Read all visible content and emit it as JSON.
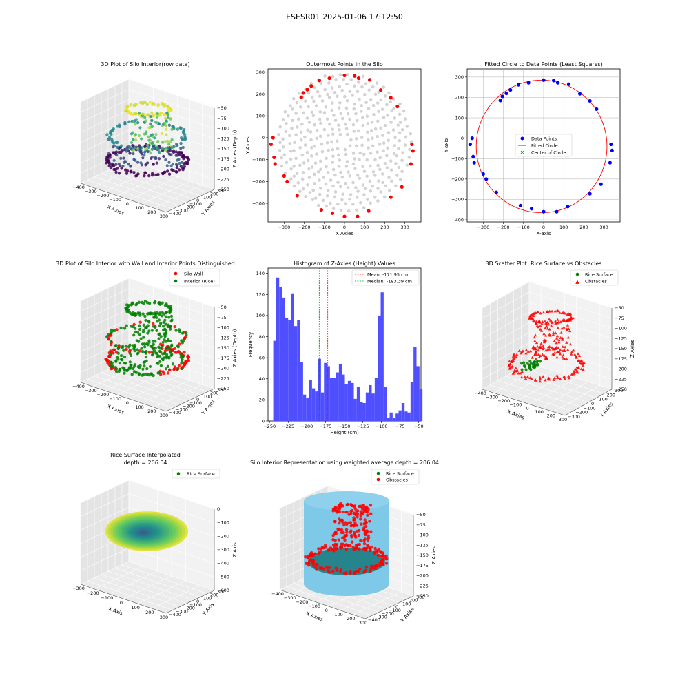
{
  "figure": {
    "suptitle": "ESESR01 2025-01-06 17:12:50"
  },
  "chart_data": [
    {
      "id": "p1",
      "type": "scatter",
      "title": "3D Plot of Silo Interior(row data)",
      "xlabel": "X Axies",
      "ylabel": "Y Axies",
      "zlabel": "Z Axies (Depth)",
      "xticks": [
        "−400",
        "−300",
        "−200",
        "−100",
        "0",
        "100",
        "200",
        "300"
      ],
      "yticks": [
        "−400",
        "−300",
        "−200",
        "−100",
        "0",
        "100",
        "200",
        "300"
      ],
      "zticks": [
        "−50",
        "−75",
        "−100",
        "−125",
        "−150",
        "−175",
        "−200",
        "−225",
        "−250"
      ],
      "colormap": "viridis"
    },
    {
      "id": "p2",
      "type": "scatter",
      "title": "Outermost Points in the Silo",
      "xlabel": "X Axies",
      "ylabel": "Y Axies",
      "xlim": [
        -380,
        380
      ],
      "ylim": [
        -385,
        315
      ],
      "xticks": [
        -300,
        -200,
        -100,
        0,
        100,
        200,
        300
      ],
      "yticks": [
        -300,
        -200,
        -100,
        0,
        100,
        200,
        300
      ],
      "series": [
        {
          "color": "#d3d3d3"
        },
        {
          "color": "#ff0000",
          "points": [
            [
              -355,
              0
            ],
            [
              -365,
              -30
            ],
            [
              -350,
              -90
            ],
            [
              -345,
              -120
            ],
            [
              -300,
              -175
            ],
            [
              -285,
              -200
            ],
            [
              -235,
              -265
            ],
            [
              -215,
              185
            ],
            [
              -205,
              205
            ],
            [
              -185,
              220
            ],
            [
              -165,
              237
            ],
            [
              -125,
              262
            ],
            [
              -75,
              272
            ],
            [
              -115,
              -330
            ],
            [
              -60,
              -345
            ],
            [
              0,
              -360
            ],
            [
              65,
              -360
            ],
            [
              120,
              -335
            ],
            [
              0,
              285
            ],
            [
              50,
              283
            ],
            [
              70,
              272
            ],
            [
              125,
              265
            ],
            [
              180,
              218
            ],
            [
              230,
              183
            ],
            [
              263,
              143
            ],
            [
              335,
              -30
            ],
            [
              340,
              -60
            ],
            [
              330,
              -120
            ],
            [
              285,
              -225
            ],
            [
              230,
              -272
            ]
          ]
        }
      ]
    },
    {
      "id": "p3",
      "type": "scatter",
      "title": "Fitted Circle to Data Points (Least Squares)",
      "xlabel": "X-axis",
      "ylabel": "Y-axis",
      "xlim": [
        -380,
        380
      ],
      "ylim": [
        -410,
        340
      ],
      "xticks": [
        -300,
        -200,
        -100,
        0,
        100,
        200,
        300
      ],
      "yticks": [
        -400,
        -300,
        -200,
        -100,
        0,
        100,
        200,
        300
      ],
      "legend": [
        "Data Points",
        "Fitted Circle",
        "Center of Circle"
      ],
      "circle": {
        "cx": -10,
        "cy": -40,
        "r": 325
      },
      "points": [
        [
          -355,
          0
        ],
        [
          -365,
          -30
        ],
        [
          -350,
          -90
        ],
        [
          -345,
          -120
        ],
        [
          -300,
          -175
        ],
        [
          -285,
          -200
        ],
        [
          -235,
          -265
        ],
        [
          -215,
          185
        ],
        [
          -205,
          205
        ],
        [
          -185,
          220
        ],
        [
          -165,
          237
        ],
        [
          -125,
          262
        ],
        [
          -75,
          272
        ],
        [
          -115,
          -330
        ],
        [
          -60,
          -345
        ],
        [
          0,
          -360
        ],
        [
          65,
          -360
        ],
        [
          120,
          -335
        ],
        [
          0,
          285
        ],
        [
          50,
          283
        ],
        [
          70,
          272
        ],
        [
          125,
          265
        ],
        [
          180,
          218
        ],
        [
          230,
          183
        ],
        [
          263,
          143
        ],
        [
          335,
          -30
        ],
        [
          340,
          -60
        ],
        [
          330,
          -120
        ],
        [
          285,
          -225
        ],
        [
          230,
          -272
        ]
      ]
    },
    {
      "id": "p4",
      "type": "scatter",
      "title": "3D Plot of Silo Interior with Wall and Interior Points Distinguished",
      "xlabel": "X Axies",
      "ylabel": "Y Axies",
      "zlabel": "Z Axies (Depth)",
      "legend": [
        "Silo Wall",
        "Interior (Rice)"
      ],
      "xticks": [
        "−400",
        "−300",
        "−200",
        "−100",
        "0",
        "100",
        "200",
        "300"
      ],
      "yticks": [
        "−400",
        "−300",
        "−200",
        "−100",
        "0",
        "100",
        "200",
        "300"
      ],
      "zticks": [
        "−50",
        "−75",
        "−100",
        "−125",
        "−150",
        "−175",
        "−200",
        "−225",
        "−250"
      ]
    },
    {
      "id": "p5",
      "type": "bar",
      "title": "Histogram of Z-Axies (Height) Values",
      "xlabel": "Height (cm)",
      "ylabel": "Frequency",
      "xlim": [
        -252,
        -47
      ],
      "ylim": [
        0,
        145
      ],
      "xticks": [
        -250,
        -225,
        -200,
        -175,
        -150,
        -125,
        -100,
        -75,
        -50
      ],
      "yticks": [
        0,
        20,
        40,
        60,
        80,
        100,
        120,
        140
      ],
      "bin_start": -245,
      "bin_width": 4,
      "values": [
        76,
        136,
        127,
        117,
        98,
        96,
        121,
        90,
        96,
        56,
        25,
        22,
        39,
        31,
        28,
        59,
        27,
        55,
        52,
        41,
        41,
        46,
        54,
        44,
        35,
        38,
        36,
        21,
        32,
        18,
        17,
        27,
        34,
        26,
        41,
        100,
        122,
        32,
        3,
        8,
        3,
        7,
        10,
        17,
        9,
        8,
        37,
        70,
        52,
        30
      ],
      "mean": -171.95,
      "median": -183.39,
      "legend": [
        "Mean: -171.95 cm",
        "Median: -183.39 cm"
      ]
    },
    {
      "id": "p6",
      "type": "scatter",
      "title": "3D Scatter Plot: Rice Surface vs Obstacles",
      "xlabel": "X Axies",
      "ylabel": "Y Axies",
      "zlabel": "Z Axies",
      "legend": [
        "Rice Surface",
        "Obstacles"
      ],
      "xticks": [
        "−400",
        "−300",
        "−200",
        "−100",
        "0",
        "100",
        "200",
        "300"
      ],
      "yticks": [
        "−300",
        "−200",
        "−100",
        "0",
        "100",
        "200",
        "300"
      ],
      "zticks": [
        "−50",
        "−75",
        "−100",
        "−125",
        "−150",
        "−175",
        "−200",
        "−225",
        "−250"
      ]
    },
    {
      "id": "p7",
      "type": "area",
      "title": "Rice Surface Interpolated",
      "subtitle": "depth = 206.04",
      "xlabel": "X Axis",
      "ylabel": "Y Axis",
      "zlabel": "Z Axis",
      "legend": [
        "Rice Surface"
      ],
      "xticks": [
        "−300",
        "−200",
        "−100",
        "0",
        "100",
        "200",
        "300"
      ],
      "yticks": [
        "−400",
        "−300",
        "−200",
        "−100",
        "0",
        "100",
        "200",
        "300"
      ],
      "zticks": [
        "0",
        "−100",
        "−200",
        "−300",
        "−400",
        "−500",
        "−600"
      ]
    },
    {
      "id": "p8",
      "type": "scatter",
      "title": "Silo Interior Representation using weighted average depth = 206.04",
      "xlabel": "X Axies",
      "ylabel": "Y Axies",
      "zlabel": "Z Axies",
      "legend": [
        "Rice Surface",
        "Obstacles"
      ],
      "xticks": [
        "−400",
        "−300",
        "−200",
        "−100",
        "0",
        "100",
        "200",
        "300"
      ],
      "yticks": [
        "−400",
        "−300",
        "−200",
        "−100",
        "0",
        "100",
        "200",
        "300"
      ],
      "zticks": [
        "−50",
        "−75",
        "−100",
        "−125",
        "−150",
        "−175",
        "−200",
        "−225",
        "−250"
      ]
    }
  ]
}
